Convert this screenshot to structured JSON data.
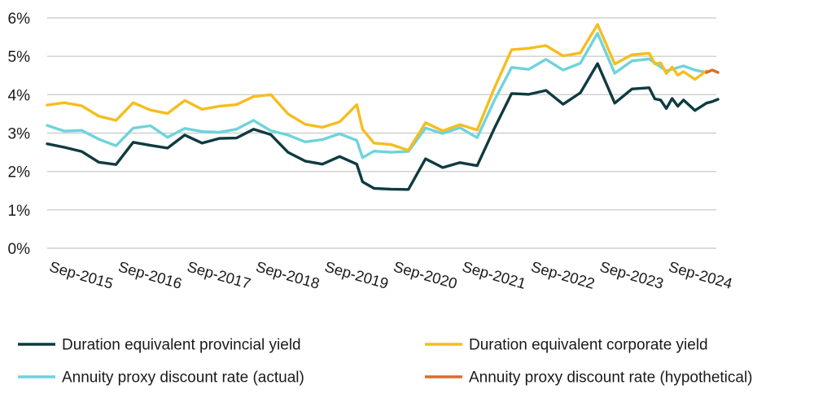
{
  "chart_data": {
    "type": "line",
    "title": "",
    "xlabel": "",
    "ylabel": "",
    "ylim": [
      0,
      6
    ],
    "y_ticks": [
      0,
      1,
      2,
      3,
      4,
      5,
      6
    ],
    "y_tick_labels": [
      "0%",
      "1%",
      "2%",
      "3%",
      "4%",
      "5%",
      "6%"
    ],
    "x_range": [
      "2015-03",
      "2024-12"
    ],
    "x_ticks": [
      "2015-09",
      "2016-09",
      "2017-09",
      "2018-09",
      "2019-09",
      "2020-09",
      "2021-09",
      "2022-09",
      "2023-09",
      "2024-09"
    ],
    "x_tick_labels": [
      "Sep-2015",
      "Sep-2016",
      "Sep-2017",
      "Sep-2018",
      "Sep-2019",
      "Sep-2020",
      "Sep-2021",
      "Sep-2022",
      "Sep-2023",
      "Sep-2024"
    ],
    "grid": "horizontal",
    "legend_position": "bottom",
    "series": [
      {
        "name": "Duration equivalent provincial yield",
        "color": "#0f3b40",
        "points": [
          [
            "2015-03",
            2.72
          ],
          [
            "2015-06",
            2.63
          ],
          [
            "2015-09",
            2.52
          ],
          [
            "2015-12",
            2.24
          ],
          [
            "2016-03",
            2.18
          ],
          [
            "2016-06",
            2.76
          ],
          [
            "2016-09",
            2.68
          ],
          [
            "2016-12",
            2.61
          ],
          [
            "2017-03",
            2.95
          ],
          [
            "2017-06",
            2.74
          ],
          [
            "2017-09",
            2.86
          ],
          [
            "2017-12",
            2.87
          ],
          [
            "2018-03",
            3.1
          ],
          [
            "2018-06",
            2.96
          ],
          [
            "2018-09",
            2.5
          ],
          [
            "2018-12",
            2.27
          ],
          [
            "2019-03",
            2.19
          ],
          [
            "2019-06",
            2.39
          ],
          [
            "2019-09",
            2.19
          ],
          [
            "2019-10",
            1.73
          ],
          [
            "2019-12",
            1.56
          ],
          [
            "2020-03",
            1.54
          ],
          [
            "2020-06",
            1.53
          ],
          [
            "2020-09",
            2.33
          ],
          [
            "2020-12",
            2.1
          ],
          [
            "2021-03",
            2.23
          ],
          [
            "2021-06",
            2.15
          ],
          [
            "2021-09",
            3.12
          ],
          [
            "2021-12",
            4.03
          ],
          [
            "2022-03",
            4.01
          ],
          [
            "2022-06",
            4.11
          ],
          [
            "2022-09",
            3.75
          ],
          [
            "2022-12",
            4.05
          ],
          [
            "2023-03",
            4.81
          ],
          [
            "2023-06",
            3.78
          ],
          [
            "2023-09",
            4.15
          ],
          [
            "2023-12",
            4.18
          ],
          [
            "2024-01",
            3.89
          ],
          [
            "2024-02",
            3.86
          ],
          [
            "2024-03",
            3.64
          ],
          [
            "2024-04",
            3.9
          ],
          [
            "2024-05",
            3.7
          ],
          [
            "2024-06",
            3.86
          ],
          [
            "2024-08",
            3.59
          ],
          [
            "2024-10",
            3.78
          ],
          [
            "2024-11",
            3.82
          ],
          [
            "2024-12",
            3.88
          ]
        ]
      },
      {
        "name": "Duration equivalent corporate yield",
        "color": "#f5bd1f",
        "points": [
          [
            "2015-03",
            3.73
          ],
          [
            "2015-06",
            3.79
          ],
          [
            "2015-09",
            3.71
          ],
          [
            "2015-12",
            3.44
          ],
          [
            "2016-03",
            3.33
          ],
          [
            "2016-06",
            3.79
          ],
          [
            "2016-09",
            3.6
          ],
          [
            "2016-12",
            3.51
          ],
          [
            "2017-03",
            3.85
          ],
          [
            "2017-06",
            3.62
          ],
          [
            "2017-09",
            3.7
          ],
          [
            "2017-12",
            3.74
          ],
          [
            "2018-03",
            3.95
          ],
          [
            "2018-06",
            4.0
          ],
          [
            "2018-09",
            3.5
          ],
          [
            "2018-12",
            3.23
          ],
          [
            "2019-03",
            3.15
          ],
          [
            "2019-06",
            3.29
          ],
          [
            "2019-09",
            3.74
          ],
          [
            "2019-10",
            3.1
          ],
          [
            "2019-12",
            2.74
          ],
          [
            "2020-03",
            2.7
          ],
          [
            "2020-06",
            2.55
          ],
          [
            "2020-09",
            3.27
          ],
          [
            "2020-12",
            3.06
          ],
          [
            "2021-03",
            3.22
          ],
          [
            "2021-06",
            3.08
          ],
          [
            "2021-09",
            4.17
          ],
          [
            "2021-12",
            5.17
          ],
          [
            "2022-03",
            5.21
          ],
          [
            "2022-06",
            5.28
          ],
          [
            "2022-09",
            5.01
          ],
          [
            "2022-12",
            5.09
          ],
          [
            "2023-03",
            5.83
          ],
          [
            "2023-06",
            4.8
          ],
          [
            "2023-09",
            5.04
          ],
          [
            "2023-12",
            5.08
          ],
          [
            "2024-01",
            4.8
          ],
          [
            "2024-02",
            4.83
          ],
          [
            "2024-03",
            4.55
          ],
          [
            "2024-04",
            4.72
          ],
          [
            "2024-05",
            4.51
          ],
          [
            "2024-06",
            4.6
          ],
          [
            "2024-08",
            4.4
          ],
          [
            "2024-10",
            4.62
          ]
        ]
      },
      {
        "name": "Annuity proxy discount rate (actual)",
        "color": "#6fd3db",
        "points": [
          [
            "2015-03",
            3.2
          ],
          [
            "2015-06",
            3.05
          ],
          [
            "2015-09",
            3.07
          ],
          [
            "2015-12",
            2.84
          ],
          [
            "2016-03",
            2.67
          ],
          [
            "2016-06",
            3.13
          ],
          [
            "2016-09",
            3.19
          ],
          [
            "2016-12",
            2.89
          ],
          [
            "2017-03",
            3.12
          ],
          [
            "2017-06",
            3.04
          ],
          [
            "2017-09",
            3.02
          ],
          [
            "2017-12",
            3.1
          ],
          [
            "2018-03",
            3.33
          ],
          [
            "2018-06",
            3.06
          ],
          [
            "2018-09",
            2.95
          ],
          [
            "2018-12",
            2.77
          ],
          [
            "2019-03",
            2.83
          ],
          [
            "2019-06",
            2.98
          ],
          [
            "2019-09",
            2.81
          ],
          [
            "2019-10",
            2.36
          ],
          [
            "2019-12",
            2.53
          ],
          [
            "2020-03",
            2.5
          ],
          [
            "2020-06",
            2.52
          ],
          [
            "2020-09",
            3.13
          ],
          [
            "2020-12",
            2.99
          ],
          [
            "2021-03",
            3.14
          ],
          [
            "2021-06",
            2.88
          ],
          [
            "2021-09",
            3.85
          ],
          [
            "2021-12",
            4.71
          ],
          [
            "2022-03",
            4.66
          ],
          [
            "2022-06",
            4.92
          ],
          [
            "2022-09",
            4.64
          ],
          [
            "2022-12",
            4.82
          ],
          [
            "2023-03",
            5.6
          ],
          [
            "2023-06",
            4.56
          ],
          [
            "2023-09",
            4.88
          ],
          [
            "2023-12",
            4.93
          ],
          [
            "2024-03",
            4.62
          ],
          [
            "2024-06",
            4.75
          ],
          [
            "2024-08",
            4.64
          ],
          [
            "2024-10",
            4.58
          ]
        ]
      },
      {
        "name": "Annuity proxy discount rate (hypothetical)",
        "color": "#dc6b2c",
        "points": [
          [
            "2024-10",
            4.58
          ],
          [
            "2024-11",
            4.64
          ],
          [
            "2024-12",
            4.58
          ]
        ]
      }
    ]
  }
}
